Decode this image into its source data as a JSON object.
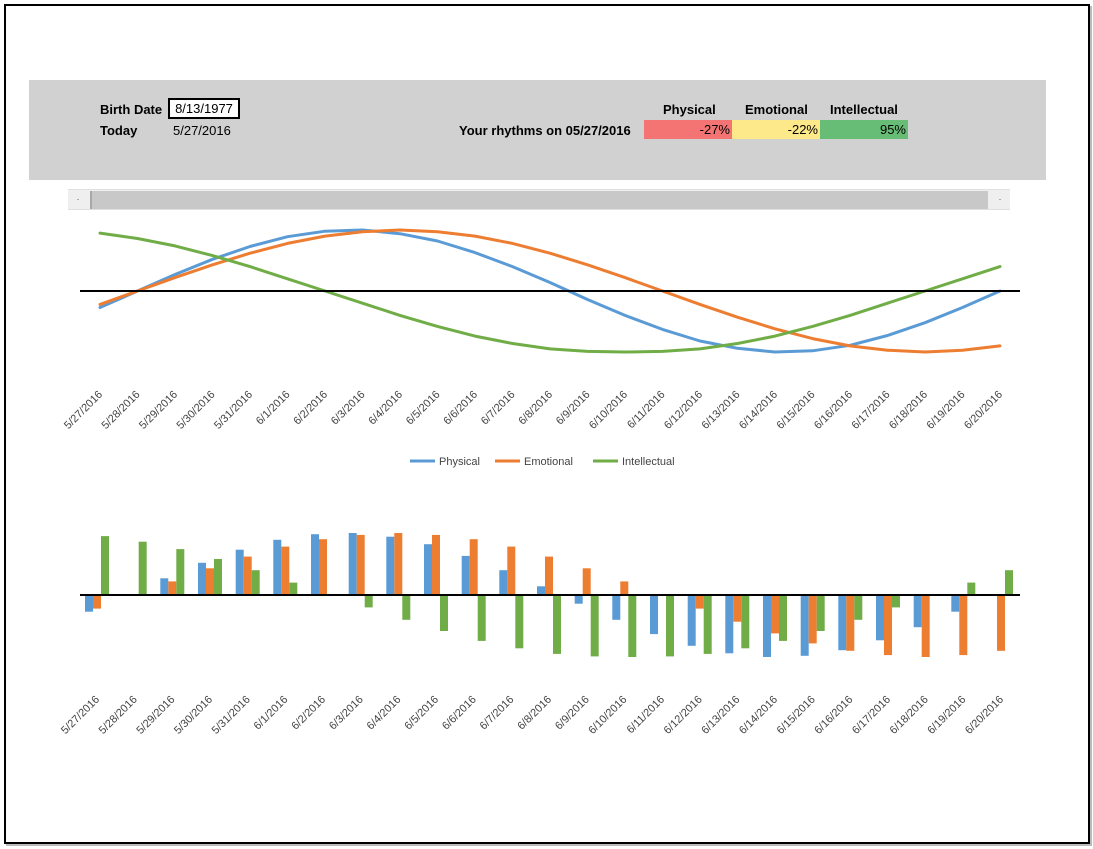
{
  "inputs": {
    "birth_date_label": "Birth Date",
    "birth_date_value": "8/13/1977",
    "today_label": "Today",
    "today_value": "5/27/2016"
  },
  "rhythms": {
    "label": "Your rhythms on 05/27/2016",
    "headers": [
      "Physical",
      "Emotional",
      "Intellectual"
    ],
    "values": [
      "-27%",
      "-22%",
      "95%"
    ],
    "colors": [
      "#f47474",
      "#fde98a",
      "#67bd76"
    ]
  },
  "scrollbar": {
    "left_icon": "·",
    "right_icon": "·"
  },
  "series_colors": {
    "Physical": "#5b9bd5",
    "Emotional": "#ed7d31",
    "Intellectual": "#70ad47"
  },
  "chart_data": [
    {
      "type": "line",
      "x": [
        "5/27/2016",
        "5/28/2016",
        "5/29/2016",
        "5/30/2016",
        "5/31/2016",
        "6/1/2016",
        "6/2/2016",
        "6/3/2016",
        "6/4/2016",
        "6/5/2016",
        "6/6/2016",
        "6/7/2016",
        "6/8/2016",
        "6/9/2016",
        "6/10/2016",
        "6/11/2016",
        "6/12/2016",
        "6/13/2016",
        "6/14/2016",
        "6/15/2016",
        "6/16/2016",
        "6/17/2016",
        "6/18/2016",
        "6/19/2016",
        "6/20/2016"
      ],
      "series": [
        {
          "name": "Physical",
          "values": [
            -0.27,
            0.0,
            0.27,
            0.52,
            0.73,
            0.89,
            0.98,
            1.0,
            0.94,
            0.82,
            0.63,
            0.4,
            0.14,
            -0.14,
            -0.4,
            -0.63,
            -0.82,
            -0.94,
            -1.0,
            -0.98,
            -0.89,
            -0.73,
            -0.52,
            -0.27,
            0.0
          ]
        },
        {
          "name": "Emotional",
          "values": [
            -0.22,
            0.0,
            0.22,
            0.43,
            0.62,
            0.78,
            0.9,
            0.97,
            1.0,
            0.97,
            0.9,
            0.78,
            0.62,
            0.43,
            0.22,
            0.0,
            -0.22,
            -0.43,
            -0.62,
            -0.78,
            -0.9,
            -0.97,
            -1.0,
            -0.97,
            -0.9
          ]
        },
        {
          "name": "Intellectual",
          "values": [
            0.95,
            0.86,
            0.74,
            0.58,
            0.4,
            0.2,
            0.0,
            -0.2,
            -0.4,
            -0.58,
            -0.74,
            -0.86,
            -0.95,
            -0.99,
            -1.0,
            -0.99,
            -0.95,
            -0.86,
            -0.74,
            -0.58,
            -0.4,
            -0.2,
            0.0,
            0.2,
            0.4
          ]
        }
      ],
      "ylim": [
        -1.05,
        1.05
      ],
      "legend": "bottom",
      "grid": false
    },
    {
      "type": "bar",
      "categories": [
        "5/27/2016",
        "5/28/2016",
        "5/29/2016",
        "5/30/2016",
        "5/31/2016",
        "6/1/2016",
        "6/2/2016",
        "6/3/2016",
        "6/4/2016",
        "6/5/2016",
        "6/6/2016",
        "6/7/2016",
        "6/8/2016",
        "6/9/2016",
        "6/10/2016",
        "6/11/2016",
        "6/12/2016",
        "6/13/2016",
        "6/14/2016",
        "6/15/2016",
        "6/16/2016",
        "6/17/2016",
        "6/18/2016",
        "6/19/2016",
        "6/20/2016"
      ],
      "series": [
        {
          "name": "Physical",
          "values": [
            -0.27,
            0.0,
            0.27,
            0.52,
            0.73,
            0.89,
            0.98,
            1.0,
            0.94,
            0.82,
            0.63,
            0.4,
            0.14,
            -0.14,
            -0.4,
            -0.63,
            -0.82,
            -0.94,
            -1.0,
            -0.98,
            -0.89,
            -0.73,
            -0.52,
            -0.27,
            0.0
          ]
        },
        {
          "name": "Emotional",
          "values": [
            -0.22,
            0.0,
            0.22,
            0.43,
            0.62,
            0.78,
            0.9,
            0.97,
            1.0,
            0.97,
            0.9,
            0.78,
            0.62,
            0.43,
            0.22,
            0.0,
            -0.22,
            -0.43,
            -0.62,
            -0.78,
            -0.9,
            -0.97,
            -1.0,
            -0.97,
            -0.9
          ]
        },
        {
          "name": "Intellectual",
          "values": [
            0.95,
            0.86,
            0.74,
            0.58,
            0.4,
            0.2,
            0.0,
            -0.2,
            -0.4,
            -0.58,
            -0.74,
            -0.86,
            -0.95,
            -0.99,
            -1.0,
            -0.99,
            -0.95,
            -0.86,
            -0.74,
            -0.58,
            -0.4,
            -0.2,
            0.0,
            0.2,
            0.4
          ]
        }
      ],
      "ylim": [
        -1.05,
        1.05
      ],
      "grid": false
    }
  ]
}
